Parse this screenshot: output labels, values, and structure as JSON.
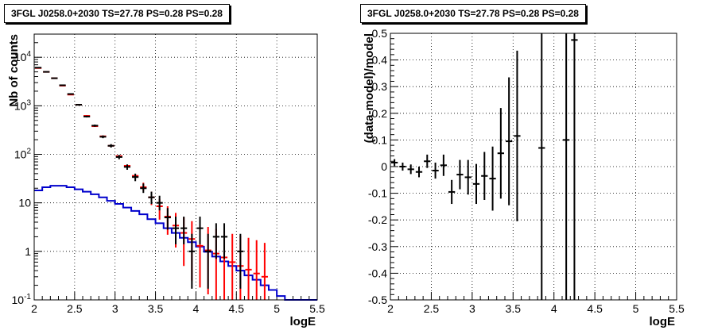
{
  "chart_data": [
    {
      "type": "line",
      "title": "3FGL J0258.0+2030 TS=27.78 PS=0.28 PS=0.28",
      "xlabel": "logE",
      "ylabel": "Nb of counts",
      "xlim": [
        2,
        5.5
      ],
      "ylim": [
        0.1,
        30000
      ],
      "y_scale": "log",
      "grid": true,
      "x_ticks": [
        "2",
        "2.5",
        "3",
        "3.5",
        "4",
        "4.5",
        "5",
        "5.5"
      ],
      "y_ticks": [
        {
          "value": 0.1,
          "label": "10",
          "exp": "-1"
        },
        {
          "value": 1,
          "label": "1",
          "exp": ""
        },
        {
          "value": 10,
          "label": "10",
          "exp": ""
        },
        {
          "value": 100,
          "label": "10",
          "exp": "2"
        },
        {
          "value": 1000,
          "label": "10",
          "exp": "3"
        },
        {
          "value": 10000,
          "label": "10",
          "exp": "4"
        }
      ],
      "bin_edges": [
        2.0,
        2.1,
        2.2,
        2.3,
        2.4,
        2.5,
        2.6,
        2.7,
        2.8,
        2.9,
        3.0,
        3.1,
        3.2,
        3.3,
        3.4,
        3.5,
        3.6,
        3.7,
        3.8,
        3.9,
        4.0,
        4.1,
        4.2,
        4.3,
        4.4,
        4.5,
        4.6,
        4.7,
        4.8,
        4.9,
        5.0,
        5.1,
        5.2,
        5.3,
        5.4,
        5.5
      ],
      "series": [
        {
          "role": "model_total",
          "color": "#ff0000",
          "x": [
            2.05,
            2.15,
            2.25,
            2.35,
            2.45,
            2.55,
            2.65,
            2.75,
            2.85,
            2.95,
            3.05,
            3.15,
            3.25,
            3.35,
            3.45,
            3.55,
            3.65,
            3.75,
            3.85,
            3.95,
            4.05,
            4.15,
            4.25,
            4.35,
            4.45,
            4.55,
            4.65,
            4.75,
            4.85
          ],
          "values": [
            6000,
            5000,
            3700,
            2600,
            1700,
            1050,
            620,
            380,
            235,
            150,
            92,
            58,
            36,
            21,
            13,
            8.5,
            5.2,
            3.4,
            2.4,
            1.8,
            1.3,
            1.05,
            0.9,
            0.75,
            0.6,
            0.5,
            0.42,
            0.35,
            0.3
          ],
          "errors": [
            0,
            0,
            0,
            0,
            0,
            0,
            0,
            0,
            0,
            0,
            0,
            0,
            0,
            0,
            0,
            0,
            0,
            0,
            0,
            0,
            0,
            0,
            0,
            0,
            0,
            0,
            0,
            0,
            0
          ],
          "err_lo": [
            null,
            null,
            null,
            null,
            null,
            null,
            null,
            null,
            null,
            null,
            null,
            null,
            null,
            18,
            9,
            4.5,
            2.2,
            1.2,
            0.5,
            0.25,
            0.18,
            0.13,
            0.1,
            0.1,
            0.1,
            0.1,
            0.1,
            0.1,
            0.1
          ],
          "err_hi": [
            null,
            null,
            null,
            null,
            null,
            null,
            null,
            null,
            null,
            null,
            null,
            null,
            null,
            26,
            17,
            12,
            8.5,
            6.2,
            5,
            4.2,
            3.6,
            3.2,
            2.9,
            2.6,
            2.3,
            2.1,
            1.9,
            1.7,
            1.5
          ]
        },
        {
          "role": "data",
          "color": "#000000",
          "x": [
            2.05,
            2.15,
            2.25,
            2.35,
            2.45,
            2.55,
            2.65,
            2.75,
            2.85,
            2.95,
            3.05,
            3.15,
            3.25,
            3.35,
            3.45,
            3.55,
            3.65,
            3.75,
            3.85,
            3.95,
            4.05,
            4.15,
            4.25,
            4.35,
            4.55
          ],
          "values": [
            6100,
            5000,
            3700,
            2650,
            1750,
            1050,
            600,
            390,
            230,
            150,
            88,
            55,
            34,
            20,
            13,
            10,
            5,
            3,
            3,
            1,
            3,
            1,
            2,
            2,
            1
          ],
          "err_lo": [
            5990,
            4900,
            3620,
            2600,
            1700,
            1020,
            575,
            370,
            215,
            138,
            79,
            48,
            28,
            16,
            9.5,
            7,
            2.8,
            1.4,
            1.4,
            0.17,
            1.4,
            0.17,
            0.7,
            0.7,
            0.17
          ],
          "err_hi": [
            6230,
            5100,
            3780,
            2700,
            1800,
            1080,
            625,
            410,
            245,
            162,
            97,
            62,
            40,
            25,
            17,
            14,
            7.8,
            5.2,
            5.2,
            2.3,
            5.2,
            2.3,
            3.8,
            3.8,
            2.3
          ]
        },
        {
          "role": "model_source",
          "color": "#0000cc",
          "step_values": [
            18,
            21,
            22.5,
            22.5,
            21,
            19,
            17,
            15,
            13,
            11,
            9.5,
            8,
            6.8,
            5.8,
            4.6,
            3.8,
            3.0,
            2.4,
            1.9,
            1.55,
            1.25,
            0.98,
            0.78,
            0.62,
            0.5,
            0.4,
            0.32,
            0.26,
            0.2,
            0.16,
            0.12,
            0.1,
            0.1,
            0.1,
            0.1
          ]
        }
      ]
    },
    {
      "type": "scatter",
      "title": "3FGL J0258.0+2030 TS=27.78 PS=0.28 PS=0.28",
      "xlabel": "logE",
      "ylabel": "(data-model)/model",
      "xlim": [
        2,
        5.5
      ],
      "ylim": [
        -0.5,
        0.5
      ],
      "grid": true,
      "x_ticks": [
        "2",
        "2.5",
        "3",
        "3.5",
        "4",
        "4.5",
        "5",
        "5.5"
      ],
      "y_ticks": [
        "-0.5",
        "-0.4",
        "-0.3",
        "-0.2",
        "-0.1",
        "0",
        "0.1",
        "0.2",
        "0.3",
        "0.4",
        "0.5"
      ],
      "series": [
        {
          "role": "residuals",
          "color": "#000000",
          "x": [
            2.05,
            2.15,
            2.25,
            2.35,
            2.45,
            2.55,
            2.65,
            2.75,
            2.85,
            2.95,
            3.05,
            3.15,
            3.25,
            3.35,
            3.45,
            3.55,
            3.85,
            4.15,
            4.25
          ],
          "values": [
            0.015,
            0.0,
            -0.01,
            -0.02,
            0.02,
            -0.015,
            0.005,
            -0.095,
            -0.03,
            -0.04,
            -0.065,
            -0.035,
            -0.045,
            0.05,
            0.095,
            0.115,
            0.07,
            0.1,
            0.475
          ],
          "err": [
            0.013,
            0.015,
            0.018,
            0.02,
            0.025,
            0.03,
            0.04,
            0.045,
            0.055,
            0.065,
            0.075,
            0.09,
            0.12,
            0.17,
            0.24,
            0.32,
            1.0,
            1.0,
            1.0
          ]
        }
      ]
    }
  ]
}
